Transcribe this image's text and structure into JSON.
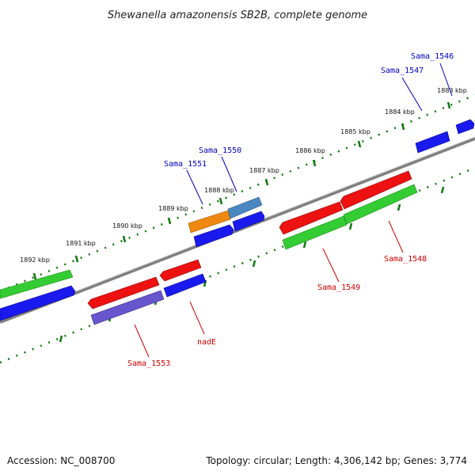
{
  "title": "Shewanella amazonensis SB2B, complete genome",
  "footer": {
    "accession": "Accession: NC_008700",
    "summary": "Topology: circular; Length: 4,306,142 bp; Genes: 3,774"
  },
  "colors": {
    "backbone": "#808080",
    "ticks": "#117711",
    "forward_label": "#0000bb",
    "reverse_label": "#cc0000",
    "red": "#ee1111",
    "green": "#33cc33",
    "blue": "#1a1aee",
    "orange": "#ee8811",
    "steelblue": "#4a86c0",
    "purple": "#6655cc"
  },
  "scale_labels": [
    "1883 kbp",
    "1884 kbp",
    "1885 kbp",
    "1886 kbp",
    "1887 kbp",
    "1888 kbp",
    "1889 kbp",
    "1890 kbp",
    "1891 kbp",
    "1892 kbp"
  ],
  "gene_labels": {
    "sama_1546": "Sama_1546",
    "sama_1547": "Sama_1547",
    "sama_1550": "Sama_1550",
    "sama_1551": "Sama_1551",
    "sama_1548": "Sama_1548",
    "sama_1549": "Sama_1549",
    "nade": "nadE",
    "sama_1553": "Sama_1553"
  }
}
